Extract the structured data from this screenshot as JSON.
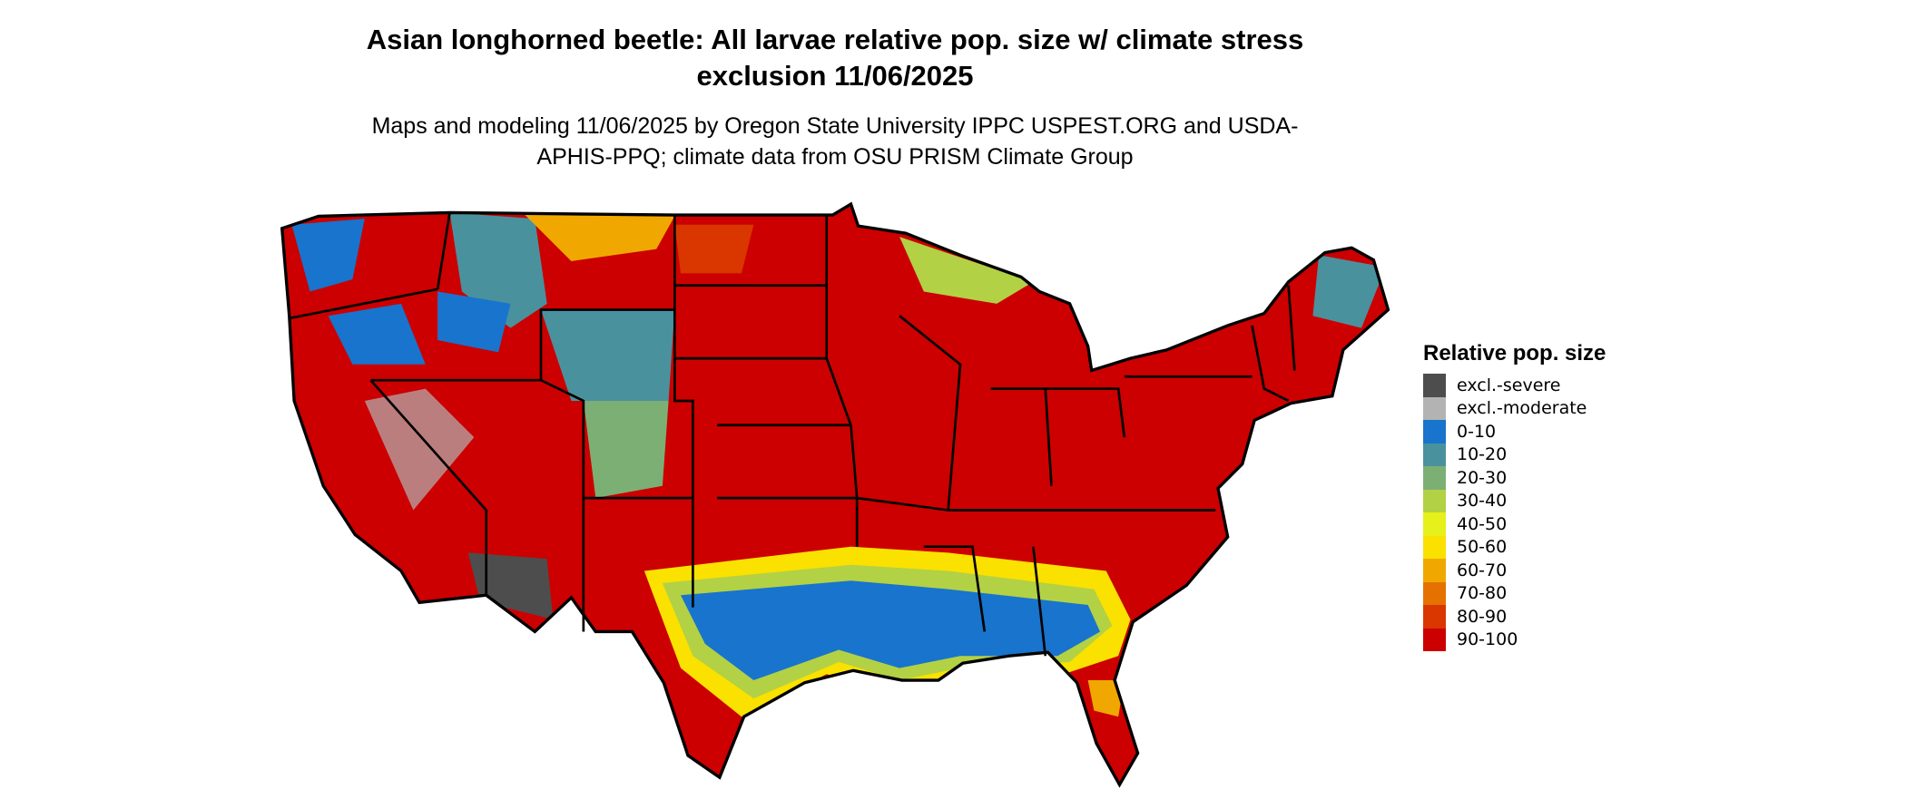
{
  "title": "Asian longhorned beetle: All larvae relative pop. size w/ climate stress exclusion 11/06/2025",
  "subtitle": "Maps and modeling 11/06/2025 by Oregon State University IPPC USPEST.ORG and USDA-APHIS-PPQ; climate data from OSU PRISM Climate Group",
  "map": {
    "region": "Contiguous United States",
    "boundaries": "state outlines",
    "dominant_class": "90-100"
  },
  "legend": {
    "title": "Relative pop. size",
    "items": [
      {
        "label": "excl.-severe",
        "color": "#4d4d4d"
      },
      {
        "label": "excl.-moderate",
        "color": "#b3b3b3"
      },
      {
        "label": "0-10",
        "color": "#1874cd"
      },
      {
        "label": "10-20",
        "color": "#4a919e"
      },
      {
        "label": "20-30",
        "color": "#7caf74"
      },
      {
        "label": "30-40",
        "color": "#b2d145"
      },
      {
        "label": "40-50",
        "color": "#e6f01a"
      },
      {
        "label": "50-60",
        "color": "#fae100"
      },
      {
        "label": "60-70",
        "color": "#f0a800"
      },
      {
        "label": "70-80",
        "color": "#e57200"
      },
      {
        "label": "80-90",
        "color": "#d93600"
      },
      {
        "label": "90-100",
        "color": "#cc0000"
      }
    ]
  }
}
